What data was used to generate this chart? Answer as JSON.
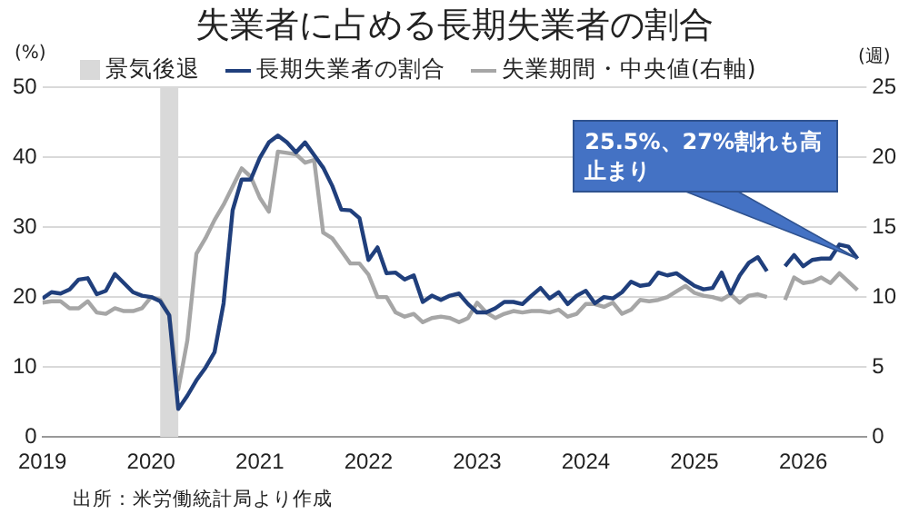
{
  "chart_data": {
    "type": "line",
    "title": "失業者に占める長期失業者の割合",
    "ylabel": "(%)",
    "y2label": "(週)",
    "x": [
      "2019-01",
      "2019-02",
      "2019-03",
      "2019-04",
      "2019-05",
      "2019-06",
      "2019-07",
      "2019-08",
      "2019-09",
      "2019-10",
      "2019-11",
      "2019-12",
      "2020-01",
      "2020-02",
      "2020-03",
      "2020-04",
      "2020-05",
      "2020-06",
      "2020-07",
      "2020-08",
      "2020-09",
      "2020-10",
      "2020-11",
      "2020-12",
      "2021-01",
      "2021-02",
      "2021-03",
      "2021-04",
      "2021-05",
      "2021-06",
      "2021-07",
      "2021-08",
      "2021-09",
      "2021-10",
      "2021-11",
      "2021-12",
      "2022-01",
      "2022-02",
      "2022-03",
      "2022-04",
      "2022-05",
      "2022-06",
      "2022-07",
      "2022-08",
      "2022-09",
      "2022-10",
      "2022-11",
      "2022-12",
      "2023-01",
      "2023-02",
      "2023-03",
      "2023-04",
      "2023-05",
      "2023-06",
      "2023-07",
      "2023-08",
      "2023-09",
      "2023-10",
      "2023-11",
      "2023-12",
      "2024-01",
      "2024-02",
      "2024-03",
      "2024-04",
      "2024-05",
      "2024-06",
      "2024-07",
      "2024-08",
      "2024-09",
      "2024-10",
      "2024-11",
      "2024-12",
      "2025-01",
      "2025-02",
      "2025-03",
      "2025-04",
      "2025-05",
      "2025-06",
      "2025-07",
      "2025-08",
      "2025-09",
      "2025-10",
      "2025-11",
      "2025-12",
      "2026-01",
      "2026-02",
      "2026-03",
      "2026-04",
      "2026-05",
      "2026-06",
      "2026-07"
    ],
    "series": [
      {
        "name": "長期失業者の割合",
        "color": "#203f7c",
        "values": [
          19.8,
          20.7,
          20.5,
          21.1,
          22.5,
          22.7,
          20.4,
          20.9,
          23.3,
          22.0,
          20.7,
          20.2,
          20.0,
          19.4,
          17.4,
          4.0,
          5.9,
          8.1,
          9.9,
          12.1,
          19.1,
          32.4,
          36.8,
          36.8,
          39.9,
          42.1,
          43.1,
          42.1,
          40.7,
          42.1,
          40.3,
          38.5,
          35.9,
          32.5,
          32.4,
          31.3,
          25.3,
          27.1,
          23.4,
          23.5,
          22.5,
          23.1,
          19.3,
          20.2,
          19.6,
          20.2,
          20.5,
          19.0,
          17.8,
          17.8,
          18.4,
          19.3,
          19.3,
          19.0,
          20.2,
          21.3,
          19.8,
          20.7,
          19.0,
          20.2,
          20.9,
          19.1,
          20.0,
          19.8,
          20.7,
          22.2,
          21.6,
          21.8,
          23.5,
          23.1,
          23.4,
          22.5,
          21.6,
          21.1,
          21.3,
          23.5,
          20.5,
          23.1,
          24.9,
          25.7,
          23.7,
          null,
          24.4,
          26.0,
          24.4,
          25.3,
          25.5,
          25.5,
          27.5,
          27.2,
          25.5
        ]
      },
      {
        "name": "失業期間・中央値(右軸)",
        "color": "#a6a6a6",
        "axis": "y2",
        "values": [
          9.6,
          9.7,
          9.7,
          9.2,
          9.2,
          9.7,
          8.9,
          8.8,
          9.2,
          9.0,
          9.0,
          9.2,
          10.0,
          9.8,
          8.7,
          3.4,
          6.9,
          13.1,
          14.2,
          15.5,
          16.6,
          17.9,
          19.2,
          18.6,
          17.1,
          16.1,
          20.4,
          20.3,
          20.2,
          19.6,
          19.8,
          14.6,
          14.2,
          13.3,
          12.4,
          12.4,
          11.6,
          10.0,
          10.0,
          8.9,
          8.6,
          8.8,
          8.2,
          8.5,
          8.6,
          8.5,
          8.2,
          8.5,
          9.6,
          8.9,
          8.5,
          8.8,
          9.0,
          8.9,
          9.0,
          9.0,
          8.9,
          9.1,
          8.6,
          8.8,
          9.5,
          9.5,
          9.3,
          9.6,
          8.8,
          9.1,
          9.8,
          9.7,
          9.8,
          10.0,
          10.4,
          10.8,
          10.3,
          10.1,
          10.0,
          9.8,
          10.2,
          9.6,
          10.1,
          10.2,
          10.0,
          null,
          9.8,
          11.4,
          11.0,
          11.1,
          11.4,
          11.0,
          11.7,
          11.1,
          10.5
        ]
      }
    ],
    "xlim": [
      "2019-01",
      "2026-08"
    ],
    "xticks": [
      {
        "value": "2019-01",
        "label": "2019"
      },
      {
        "value": "2020-01",
        "label": "2020"
      },
      {
        "value": "2021-01",
        "label": "2021"
      },
      {
        "value": "2022-01",
        "label": "2022"
      },
      {
        "value": "2023-01",
        "label": "2023"
      },
      {
        "value": "2024-01",
        "label": "2024"
      },
      {
        "value": "2025-01",
        "label": "2025"
      },
      {
        "value": "2026-01",
        "label": "2026"
      }
    ],
    "ylim": [
      0,
      50
    ],
    "yticks": [
      0,
      10,
      20,
      30,
      40,
      50
    ],
    "y2lim": [
      0,
      25
    ],
    "y2ticks": [
      0,
      5,
      10,
      15,
      20,
      25
    ],
    "bands": [
      {
        "axis": "x",
        "from": "2020-02",
        "to": "2020-04",
        "label": "景気後退",
        "color": "#d9d9d9"
      }
    ],
    "annotations": [
      {
        "text": "25.5%、27%割れも高止まり",
        "x": "2026-07",
        "y": 25.5
      },
      "出所：米労働統計局より作成"
    ],
    "grid": "y",
    "legend": "top",
    "marker": "none",
    "line_style": "solid"
  }
}
